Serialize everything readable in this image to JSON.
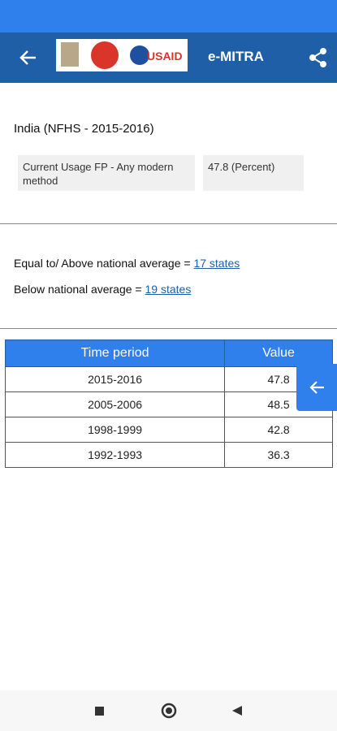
{
  "app_bar": {
    "logo_text": "USAID",
    "title": "e-MITRA"
  },
  "summary": {
    "heading": "India (NFHS - 2015-2016)",
    "indicator": "Current Usage FP - Any modern method",
    "value": "47.8 (Percent)"
  },
  "comparison": {
    "above_label": "Equal to/ Above national average =",
    "above_link": "17 states",
    "below_label": "Below national average =",
    "below_link": "19 states"
  },
  "table": {
    "headers": [
      "Time period",
      "Value"
    ],
    "rows": [
      [
        "2015-2016",
        47.8
      ],
      [
        "2005-2006",
        48.5
      ],
      [
        "1998-1999",
        42.8
      ],
      [
        "1992-1993",
        36.3
      ]
    ]
  }
}
